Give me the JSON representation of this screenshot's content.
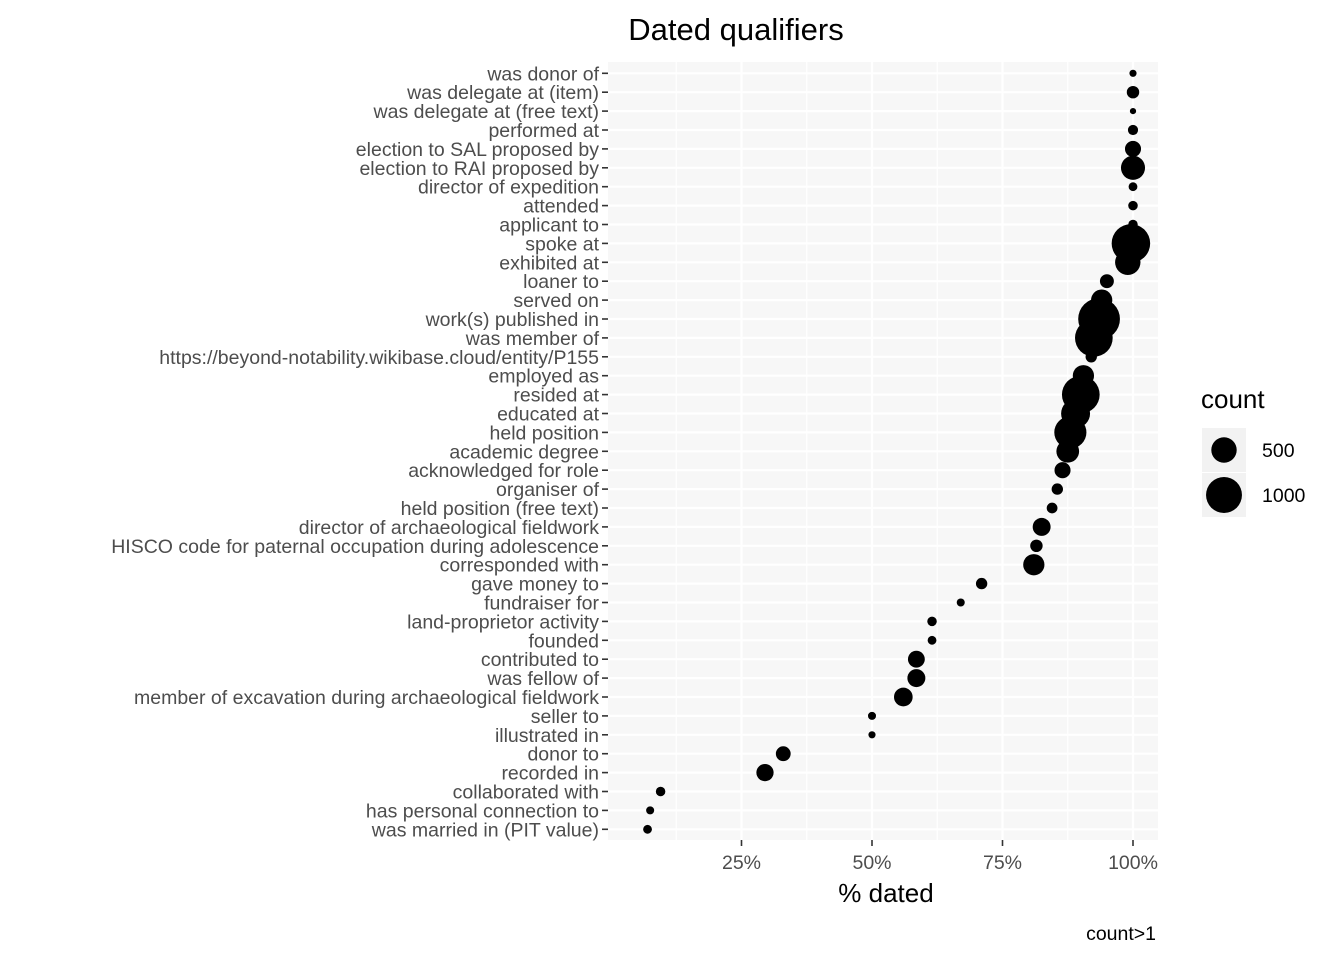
{
  "chart_data": {
    "type": "scatter",
    "title": "Dated qualifiers",
    "xlabel": "% dated",
    "ylabel": "",
    "xlim": [
      5,
      105
    ],
    "x_ticks": [
      25,
      50,
      75,
      100
    ],
    "x_tick_labels": [
      "25%",
      "50%",
      "75%",
      "100%"
    ],
    "caption": "count>1",
    "grid": true,
    "legend": {
      "title": "count",
      "position": "right",
      "entries": [
        {
          "label": "500",
          "value": 500
        },
        {
          "label": "1000",
          "value": 1000
        }
      ]
    },
    "points": [
      {
        "label": "was donor of",
        "pct": 100.0,
        "count": 40
      },
      {
        "label": "was delegate at (item)",
        "pct": 100.0,
        "count": 120
      },
      {
        "label": "was delegate at (free text)",
        "pct": 100.0,
        "count": 30
      },
      {
        "label": "performed at",
        "pct": 100.0,
        "count": 80
      },
      {
        "label": "election to SAL proposed by",
        "pct": 100.0,
        "count": 200
      },
      {
        "label": "election to RAI proposed by",
        "pct": 100.0,
        "count": 450
      },
      {
        "label": "director of expedition",
        "pct": 100.0,
        "count": 60
      },
      {
        "label": "attended",
        "pct": 100.0,
        "count": 70
      },
      {
        "label": "applicant to",
        "pct": 100.0,
        "count": 70
      },
      {
        "label": "spoke at",
        "pct": 99.6,
        "count": 1150
      },
      {
        "label": "exhibited at",
        "pct": 99.0,
        "count": 500
      },
      {
        "label": "loaner to",
        "pct": 95.0,
        "count": 150
      },
      {
        "label": "served on",
        "pct": 94.0,
        "count": 350
      },
      {
        "label": "work(s) published in",
        "pct": 93.5,
        "count": 1350
      },
      {
        "label": "was member of",
        "pct": 92.5,
        "count": 1100
      },
      {
        "label": "https://beyond-notability.wikibase.cloud/entity/P155",
        "pct": 92.0,
        "count": 100
      },
      {
        "label": "employed as",
        "pct": 90.5,
        "count": 350
      },
      {
        "label": "resided at",
        "pct": 90.0,
        "count": 1100
      },
      {
        "label": "educated at",
        "pct": 89.0,
        "count": 650
      },
      {
        "label": "held position",
        "pct": 88.0,
        "count": 800
      },
      {
        "label": "academic degree",
        "pct": 87.5,
        "count": 400
      },
      {
        "label": "acknowledged for role",
        "pct": 86.5,
        "count": 200
      },
      {
        "label": "organiser of",
        "pct": 85.5,
        "count": 100
      },
      {
        "label": "held position (free text)",
        "pct": 84.5,
        "count": 90
      },
      {
        "label": "director of archaeological fieldwork",
        "pct": 82.5,
        "count": 250
      },
      {
        "label": "HISCO code for paternal occupation during adolescence",
        "pct": 81.5,
        "count": 120
      },
      {
        "label": "corresponded with",
        "pct": 81.0,
        "count": 350
      },
      {
        "label": "gave money to",
        "pct": 71.0,
        "count": 100
      },
      {
        "label": "fundraiser for",
        "pct": 67.0,
        "count": 50
      },
      {
        "label": "land-proprietor activity",
        "pct": 61.5,
        "count": 70
      },
      {
        "label": "founded",
        "pct": 61.5,
        "count": 60
      },
      {
        "label": "contributed to",
        "pct": 58.5,
        "count": 220
      },
      {
        "label": "was fellow of",
        "pct": 58.5,
        "count": 250
      },
      {
        "label": "member of excavation during archaeological fieldwork",
        "pct": 56.0,
        "count": 270
      },
      {
        "label": "seller to",
        "pct": 50.0,
        "count": 50
      },
      {
        "label": "illustrated in",
        "pct": 50.0,
        "count": 40
      },
      {
        "label": "donor to",
        "pct": 33.0,
        "count": 170
      },
      {
        "label": "recorded in",
        "pct": 29.5,
        "count": 230
      },
      {
        "label": "collaborated with",
        "pct": 9.5,
        "count": 70
      },
      {
        "label": "has personal connection to",
        "pct": 7.5,
        "count": 50
      },
      {
        "label": "was married in (PIT value)",
        "pct": 7.0,
        "count": 60
      }
    ]
  }
}
